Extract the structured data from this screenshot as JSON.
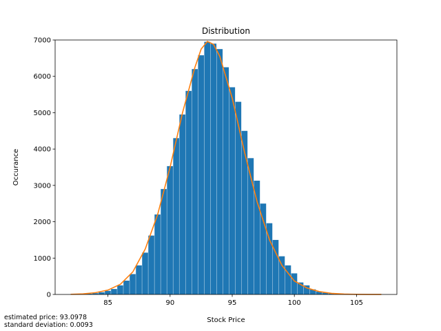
{
  "chart_data": {
    "type": "bar",
    "title": "Distribution",
    "xlabel": "Stock Price",
    "ylabel": "Occurance",
    "xlim": [
      80.75,
      108.25
    ],
    "ylim": [
      0,
      7000
    ],
    "xticks": [
      85,
      90,
      95,
      100,
      105
    ],
    "yticks": [
      0,
      1000,
      2000,
      3000,
      4000,
      5000,
      6000,
      7000
    ],
    "grid": false,
    "legend": "none",
    "colors": {
      "histogram": "#1f77b4",
      "density_line": "#ff7f0e"
    },
    "series": [
      {
        "type": "histogram",
        "bin_width": 0.5,
        "bin_centers": [
          82.0,
          82.5,
          83.0,
          83.5,
          84.0,
          84.5,
          85.0,
          85.5,
          86.0,
          86.5,
          87.0,
          87.5,
          88.0,
          88.5,
          89.0,
          89.5,
          90.0,
          90.5,
          91.0,
          91.5,
          92.0,
          92.5,
          93.0,
          93.5,
          94.0,
          94.5,
          95.0,
          95.5,
          96.0,
          96.5,
          97.0,
          97.5,
          98.0,
          98.5,
          99.0,
          99.5,
          100.0,
          100.5,
          101.0,
          101.5,
          102.0,
          102.5,
          103.0,
          103.5,
          104.0,
          104.5,
          105.0,
          105.5,
          106.0,
          106.5,
          107.0
        ],
        "values": [
          0,
          5,
          10,
          20,
          35,
          60,
          100,
          150,
          250,
          380,
          560,
          800,
          1150,
          1620,
          2200,
          2900,
          3530,
          4300,
          4950,
          5600,
          6200,
          6580,
          6950,
          6900,
          6750,
          6250,
          5700,
          5300,
          4500,
          3750,
          3130,
          2500,
          1960,
          1500,
          1050,
          800,
          580,
          330,
          250,
          140,
          80,
          45,
          25,
          15,
          8,
          4,
          2,
          1,
          0,
          0,
          0
        ]
      },
      {
        "type": "line",
        "x": [
          82.0,
          83.0,
          84.0,
          85.0,
          86.0,
          87.0,
          88.0,
          89.0,
          90.0,
          91.0,
          92.0,
          92.5,
          93.0,
          93.5,
          94.0,
          95.0,
          96.0,
          97.0,
          98.0,
          99.0,
          100.0,
          101.0,
          102.0,
          103.0,
          104.0,
          105.0,
          106.0,
          107.0
        ],
        "values": [
          5,
          15,
          50,
          120,
          280,
          620,
          1250,
          2200,
          3500,
          5000,
          6250,
          6750,
          6960,
          6880,
          6550,
          5400,
          3900,
          2550,
          1500,
          800,
          370,
          180,
          80,
          30,
          10,
          4,
          2,
          1
        ]
      }
    ]
  },
  "annotations": {
    "estimate_text": "estimated price: 93.0978",
    "stdev_text": "standard deviation: 0.0093"
  }
}
